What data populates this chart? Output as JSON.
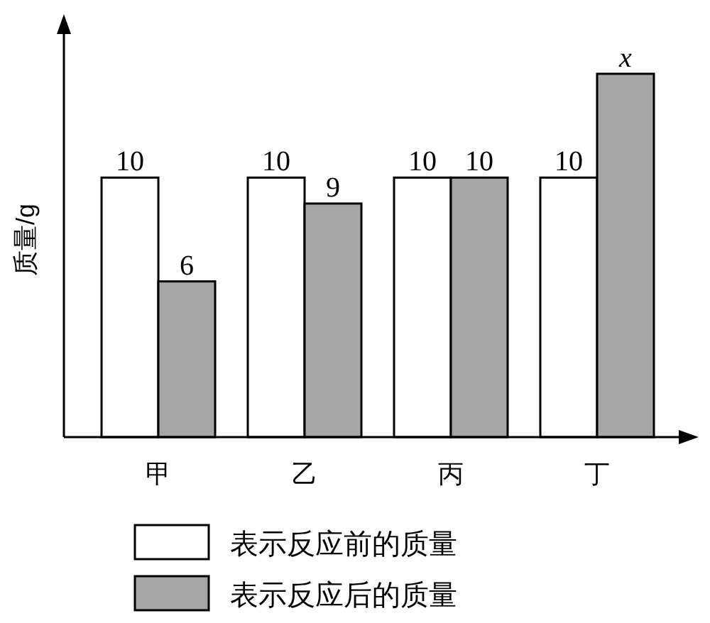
{
  "chart_data": {
    "type": "bar",
    "ylabel": "质量/g",
    "categories": [
      "甲",
      "乙",
      "丙",
      "丁"
    ],
    "series": [
      {
        "name": "表示反应前的质量",
        "color": "#ffffff",
        "values": [
          10,
          10,
          10,
          10
        ],
        "value_labels": [
          "10",
          "10",
          "10",
          "10"
        ]
      },
      {
        "name": "表示反应后的质量",
        "color": "#a6a6a6",
        "values": [
          6,
          9,
          10,
          14
        ],
        "value_labels": [
          "6",
          "9",
          "10",
          "x"
        ]
      }
    ],
    "legend": "bottom"
  }
}
